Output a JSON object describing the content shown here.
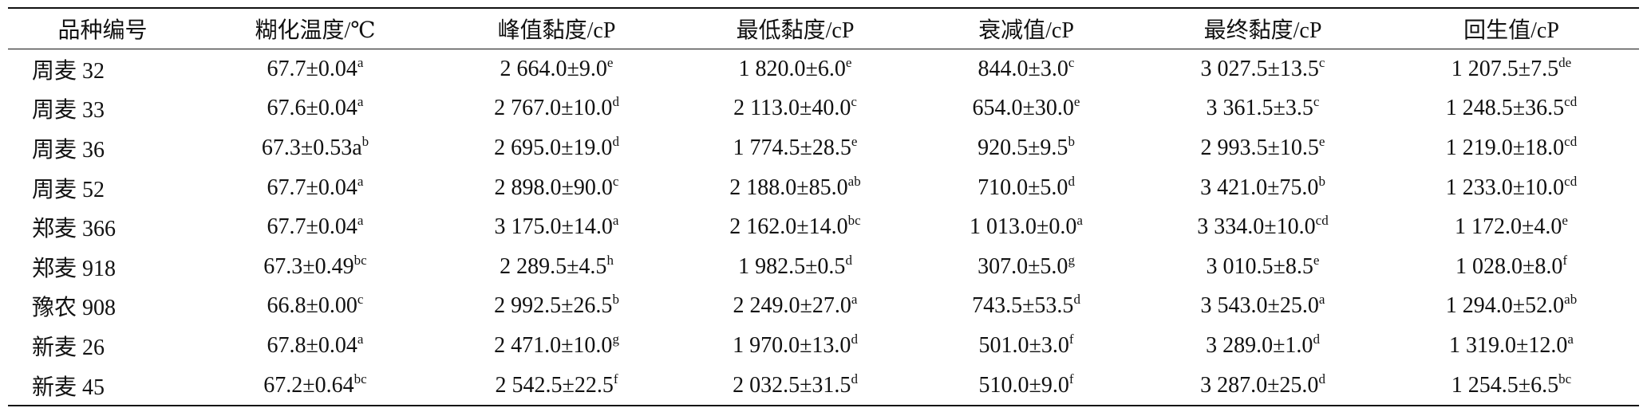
{
  "table": {
    "headers": [
      "品种编号",
      "糊化温度/℃",
      "峰值黏度/cP",
      "最低黏度/cP",
      "衰减值/cP",
      "最终黏度/cP",
      "回生值/cP"
    ],
    "rows": [
      [
        "周麦 32",
        {
          "value": "67.7±0.04",
          "sup": "a"
        },
        {
          "value": "2 664.0±9.0",
          "sup": "e"
        },
        {
          "value": "1 820.0±6.0",
          "sup": "e"
        },
        {
          "value": "844.0±3.0",
          "sup": "c"
        },
        {
          "value": "3 027.5±13.5",
          "sup": "c"
        },
        {
          "value": "1 207.5±7.5",
          "sup": "de"
        }
      ],
      [
        "周麦 33",
        {
          "value": "67.6±0.04",
          "sup": "a"
        },
        {
          "value": "2 767.0±10.0",
          "sup": "d"
        },
        {
          "value": "2 113.0±40.0",
          "sup": "c"
        },
        {
          "value": "654.0±30.0",
          "sup": "e"
        },
        {
          "value": "3 361.5±3.5",
          "sup": "c"
        },
        {
          "value": "1 248.5±36.5",
          "sup": "cd"
        }
      ],
      [
        "周麦 36",
        {
          "value": "67.3±0.53a",
          "sup": "b"
        },
        {
          "value": "2 695.0±19.0",
          "sup": "d"
        },
        {
          "value": "1 774.5±28.5",
          "sup": "e"
        },
        {
          "value": "920.5±9.5",
          "sup": "b"
        },
        {
          "value": "2 993.5±10.5",
          "sup": "e"
        },
        {
          "value": "1 219.0±18.0",
          "sup": "cd"
        }
      ],
      [
        "周麦 52",
        {
          "value": "67.7±0.04",
          "sup": "a"
        },
        {
          "value": "2 898.0±90.0",
          "sup": "c"
        },
        {
          "value": "2 188.0±85.0",
          "sup": "ab"
        },
        {
          "value": "710.0±5.0",
          "sup": "d"
        },
        {
          "value": "3 421.0±75.0",
          "sup": "b"
        },
        {
          "value": "1 233.0±10.0",
          "sup": "cd"
        }
      ],
      [
        "郑麦 366",
        {
          "value": "67.7±0.04",
          "sup": "a"
        },
        {
          "value": "3 175.0±14.0",
          "sup": "a"
        },
        {
          "value": "2 162.0±14.0",
          "sup": "bc"
        },
        {
          "value": "1 013.0±0.0",
          "sup": "a"
        },
        {
          "value": "3 334.0±10.0",
          "sup": "cd"
        },
        {
          "value": "1 172.0±4.0",
          "sup": "e"
        }
      ],
      [
        "郑麦 918",
        {
          "value": "67.3±0.49",
          "sup": "bc"
        },
        {
          "value": "2 289.5±4.5",
          "sup": "h"
        },
        {
          "value": "1 982.5±0.5",
          "sup": "d"
        },
        {
          "value": "307.0±5.0",
          "sup": "g"
        },
        {
          "value": "3 010.5±8.5",
          "sup": "e"
        },
        {
          "value": "1 028.0±8.0",
          "sup": "f"
        }
      ],
      [
        "豫农 908",
        {
          "value": "66.8±0.00",
          "sup": "c"
        },
        {
          "value": "2 992.5±26.5",
          "sup": "b"
        },
        {
          "value": "2 249.0±27.0",
          "sup": "a"
        },
        {
          "value": "743.5±53.5",
          "sup": "d"
        },
        {
          "value": "3 543.0±25.0",
          "sup": "a"
        },
        {
          "value": "1 294.0±52.0",
          "sup": "ab"
        }
      ],
      [
        "新麦 26",
        {
          "value": "67.8±0.04",
          "sup": "a"
        },
        {
          "value": "2 471.0±10.0",
          "sup": "g"
        },
        {
          "value": "1 970.0±13.0",
          "sup": "d"
        },
        {
          "value": "501.0±3.0",
          "sup": "f"
        },
        {
          "value": "3 289.0±1.0",
          "sup": "d"
        },
        {
          "value": "1 319.0±12.0",
          "sup": "a"
        }
      ],
      [
        "新麦 45",
        {
          "value": "67.2±0.64",
          "sup": "bc"
        },
        {
          "value": "2 542.5±22.5",
          "sup": "f"
        },
        {
          "value": "2 032.5±31.5",
          "sup": "d"
        },
        {
          "value": "510.0±9.0",
          "sup": "f"
        },
        {
          "value": "3 287.0±25.0",
          "sup": "d"
        },
        {
          "value": "1 254.5±6.5",
          "sup": "bc"
        }
      ]
    ]
  }
}
